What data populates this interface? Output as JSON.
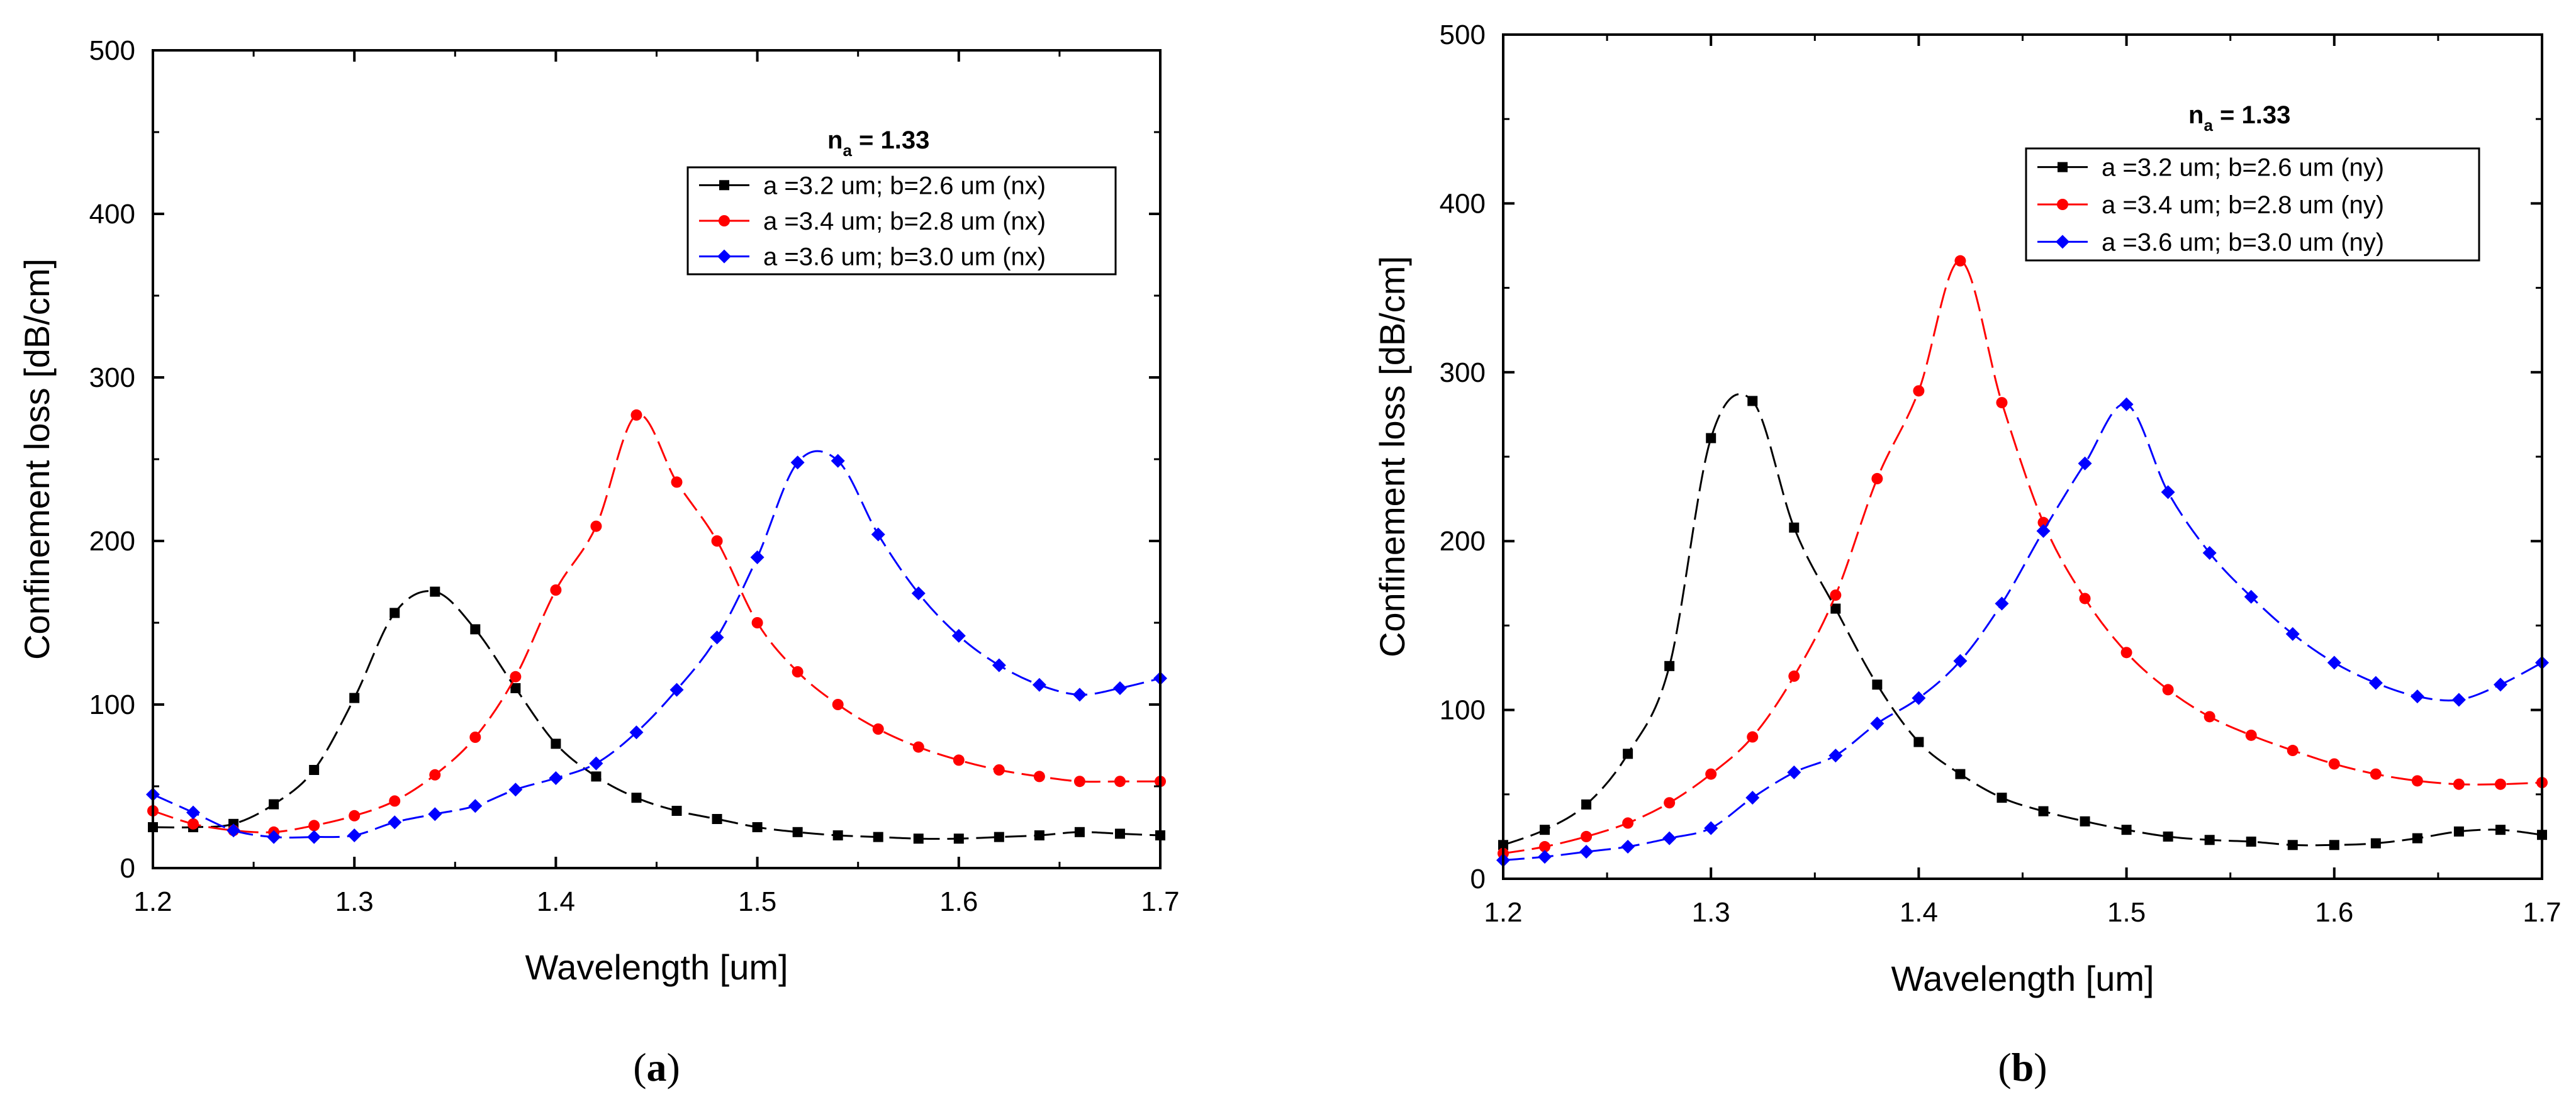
{
  "chart_data": [
    {
      "type": "line",
      "panel_label": "a",
      "annotation": {
        "main": "n",
        "sub": "a",
        "rest": " = 1.33"
      },
      "xlabel": "Wavelength [um]",
      "ylabel": "Confinement loss [dB/cm]",
      "xlim": [
        1.2,
        1.7
      ],
      "ylim": [
        0,
        500
      ],
      "xticks": [
        "1.2",
        "1.3",
        "1.4",
        "1.5",
        "1.6",
        "1.7"
      ],
      "yticks": [
        "0",
        "100",
        "200",
        "300",
        "400",
        "500"
      ],
      "legend_position": "top-right",
      "series": [
        {
          "name": "a  =3.2 um; b=2.6 um (nx)",
          "color": "#000000",
          "marker": "square",
          "x": [
            1.2,
            1.22,
            1.24,
            1.26,
            1.28,
            1.3,
            1.32,
            1.34,
            1.36,
            1.38,
            1.4,
            1.42,
            1.44,
            1.46,
            1.48,
            1.5,
            1.52,
            1.54,
            1.56,
            1.58,
            1.6,
            1.62,
            1.64,
            1.66,
            1.68,
            1.7
          ],
          "y": [
            25,
            25,
            27,
            39,
            60,
            104,
            156,
            169,
            146,
            110,
            76,
            56,
            43,
            35,
            30,
            25,
            22,
            20,
            19,
            18,
            18,
            19,
            20,
            22,
            21,
            20
          ]
        },
        {
          "name": "a =3.4 um; b=2.8 um (nx)",
          "color": "#ff0000",
          "marker": "circle",
          "x": [
            1.2,
            1.22,
            1.24,
            1.26,
            1.28,
            1.3,
            1.32,
            1.34,
            1.36,
            1.38,
            1.4,
            1.42,
            1.44,
            1.46,
            1.48,
            1.5,
            1.52,
            1.54,
            1.56,
            1.58,
            1.6,
            1.62,
            1.64,
            1.66,
            1.68,
            1.7
          ],
          "y": [
            35,
            27,
            23,
            22,
            26,
            32,
            41,
            57,
            80,
            117,
            170,
            209,
            277,
            236,
            200,
            150,
            120,
            100,
            85,
            74,
            66,
            60,
            56,
            53,
            53,
            53
          ]
        },
        {
          "name": "a =3.6 um; b=3.0 um (nx)",
          "color": "#0000ff",
          "marker": "diamond",
          "x": [
            1.2,
            1.22,
            1.24,
            1.26,
            1.28,
            1.3,
            1.32,
            1.34,
            1.36,
            1.38,
            1.4,
            1.42,
            1.44,
            1.46,
            1.48,
            1.5,
            1.52,
            1.54,
            1.56,
            1.58,
            1.6,
            1.62,
            1.64,
            1.66,
            1.68,
            1.7
          ],
          "y": [
            45,
            34,
            23,
            19,
            19,
            20,
            28,
            33,
            38,
            48,
            55,
            64,
            83,
            109,
            141,
            190,
            248,
            249,
            204,
            168,
            142,
            124,
            112,
            106,
            110,
            116
          ]
        }
      ]
    },
    {
      "type": "line",
      "panel_label": "b",
      "annotation": {
        "main": "n",
        "sub": "a",
        "rest": " = 1.33"
      },
      "xlabel": "Wavelength [um]",
      "ylabel": "Confinement loss [dB/cm]",
      "xlim": [
        1.2,
        1.7
      ],
      "ylim": [
        0,
        500
      ],
      "xticks": [
        "1.2",
        "1.3",
        "1.4",
        "1.5",
        "1.6",
        "1.7"
      ],
      "yticks": [
        "0",
        "100",
        "200",
        "300",
        "400",
        "500"
      ],
      "legend_position": "top-right",
      "series": [
        {
          "name": "a  =3.2 um; b=2.6 um (ny)",
          "color": "#000000",
          "marker": "square",
          "x": [
            1.2,
            1.22,
            1.24,
            1.26,
            1.28,
            1.3,
            1.32,
            1.34,
            1.36,
            1.38,
            1.4,
            1.42,
            1.44,
            1.46,
            1.48,
            1.5,
            1.52,
            1.54,
            1.56,
            1.58,
            1.6,
            1.62,
            1.64,
            1.66,
            1.68,
            1.7
          ],
          "y": [
            20,
            29,
            44,
            74,
            126,
            261,
            283,
            208,
            160,
            115,
            81,
            62,
            48,
            40,
            34,
            29,
            25,
            23,
            22,
            20,
            20,
            21,
            24,
            28,
            29,
            26
          ]
        },
        {
          "name": "a =3.4 um; b=2.8 um (ny)",
          "color": "#ff0000",
          "marker": "circle",
          "x": [
            1.2,
            1.22,
            1.24,
            1.26,
            1.28,
            1.3,
            1.32,
            1.34,
            1.36,
            1.38,
            1.4,
            1.42,
            1.44,
            1.46,
            1.48,
            1.5,
            1.52,
            1.54,
            1.56,
            1.58,
            1.6,
            1.62,
            1.64,
            1.66,
            1.68,
            1.7
          ],
          "y": [
            15,
            19,
            25,
            33,
            45,
            62,
            84,
            120,
            168,
            237,
            289,
            366,
            282,
            211,
            166,
            134,
            112,
            96,
            85,
            76,
            68,
            62,
            58,
            56,
            56,
            57
          ]
        },
        {
          "name": "a =3.6 um; b=3.0 um (ny)",
          "color": "#0000ff",
          "marker": "diamond",
          "x": [
            1.2,
            1.22,
            1.24,
            1.26,
            1.28,
            1.3,
            1.32,
            1.34,
            1.36,
            1.38,
            1.4,
            1.42,
            1.44,
            1.46,
            1.48,
            1.5,
            1.52,
            1.54,
            1.56,
            1.58,
            1.6,
            1.62,
            1.64,
            1.66,
            1.68,
            1.7
          ],
          "y": [
            11,
            13,
            16,
            19,
            24,
            30,
            48,
            63,
            73,
            92,
            107,
            129,
            163,
            206,
            246,
            281,
            229,
            193,
            167,
            145,
            128,
            116,
            108,
            106,
            115,
            128
          ]
        }
      ]
    }
  ]
}
